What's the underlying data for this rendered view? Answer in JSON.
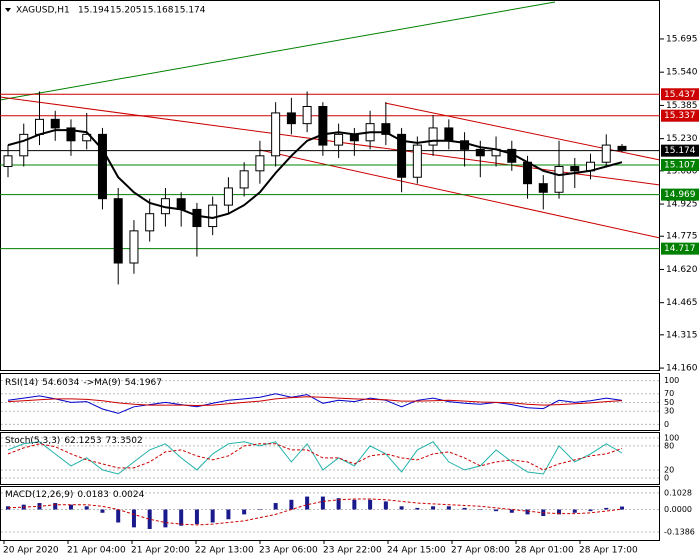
{
  "chart_data": {
    "type": "candlestick",
    "title": "XAGUSD,H1",
    "ylim": [
      14.151,
      15.872
    ],
    "yticks": [
      {
        "value": 14.16,
        "label": "14.160"
      },
      14.315,
      14.465,
      {
        "value": 14.62,
        "label": "14.620"
      },
      14.775,
      14.925,
      {
        "value": 15.08,
        "label": "15.080"
      },
      {
        "value": 15.23,
        "label": "15.230"
      },
      15.385,
      {
        "value": 15.54,
        "label": "15.540"
      },
      15.695
    ],
    "time_labels": [
      "20 Apr 2020",
      "21 Apr 04:00",
      "21 Apr 20:00",
      "22 Apr 13:00",
      "23 Apr 06:00",
      "23 Apr 22:00",
      "24 Apr 15:00",
      "27 Apr 08:00",
      "28 Apr 01:00",
      "28 Apr 17:00"
    ],
    "open": [
      15.1,
      15.15,
      15.25,
      15.32,
      15.28,
      15.22,
      15.25,
      14.95,
      14.65,
      14.8,
      14.88,
      14.95,
      14.9,
      14.82,
      14.92,
      15.0,
      15.08,
      15.15,
      15.35,
      15.3,
      15.38,
      15.2,
      15.25,
      15.22,
      15.3,
      15.25,
      15.05,
      15.2,
      15.28,
      15.22,
      15.18,
      15.15,
      15.18,
      15.12,
      15.02,
      14.98,
      15.1,
      15.08,
      15.12,
      15.194
    ],
    "high": [
      15.2,
      15.3,
      15.45,
      15.36,
      15.32,
      15.35,
      15.28,
      15.0,
      14.85,
      14.95,
      15.0,
      14.98,
      14.93,
      14.96,
      15.05,
      15.12,
      15.22,
      15.4,
      15.42,
      15.45,
      15.4,
      15.3,
      15.28,
      15.36,
      15.4,
      15.28,
      15.24,
      15.34,
      15.32,
      15.26,
      15.22,
      15.24,
      15.22,
      15.15,
      15.06,
      15.22,
      15.14,
      15.16,
      15.25,
      15.205
    ],
    "low": [
      15.05,
      15.1,
      15.2,
      15.22,
      15.15,
      15.18,
      14.9,
      14.55,
      14.6,
      14.75,
      14.82,
      14.82,
      14.68,
      14.78,
      14.88,
      14.96,
      15.02,
      15.1,
      15.25,
      15.26,
      15.15,
      15.14,
      15.15,
      15.18,
      15.2,
      14.98,
      15.02,
      15.15,
      15.18,
      15.1,
      15.05,
      15.1,
      15.08,
      14.95,
      14.9,
      14.95,
      15.0,
      15.04,
      15.1,
      15.168
    ],
    "close": [
      15.15,
      15.25,
      15.32,
      15.28,
      15.22,
      15.25,
      14.95,
      14.65,
      14.8,
      14.88,
      14.95,
      14.9,
      14.82,
      14.92,
      15.0,
      15.08,
      15.15,
      15.35,
      15.3,
      15.38,
      15.2,
      15.25,
      15.22,
      15.3,
      15.25,
      15.05,
      15.2,
      15.28,
      15.22,
      15.18,
      15.15,
      15.18,
      15.12,
      15.02,
      14.98,
      15.1,
      15.08,
      15.12,
      15.2,
      15.174
    ],
    "ma": {
      "color": "#000000",
      "values": [
        15.2,
        15.22,
        15.25,
        15.27,
        15.27,
        15.26,
        15.18,
        15.05,
        14.98,
        14.93,
        14.91,
        14.9,
        14.87,
        14.86,
        14.88,
        14.92,
        14.98,
        15.07,
        15.15,
        15.22,
        15.25,
        15.26,
        15.25,
        15.26,
        15.26,
        15.22,
        15.21,
        15.22,
        15.22,
        15.21,
        15.19,
        15.18,
        15.16,
        15.12,
        15.08,
        15.06,
        15.07,
        15.08,
        15.1,
        15.12
      ]
    },
    "levels": [
      {
        "value": 15.437,
        "color": "#cc0000"
      },
      {
        "value": 15.337,
        "color": "#cc0000"
      },
      {
        "value": 15.174,
        "color": "#000000"
      },
      {
        "value": 15.107,
        "color": "#008000"
      },
      {
        "value": 14.969,
        "color": "#008000"
      },
      {
        "value": 14.717,
        "color": "#008000"
      }
    ],
    "rsi": {
      "label": "RSI(14)",
      "ma_label": "->MA(9)",
      "ylim": [
        -13,
        115
      ],
      "yticks": [
        0,
        30,
        50,
        70,
        100
      ],
      "series": [
        {
          "color": "#0000cc",
          "values": [
            55,
            60,
            65,
            58,
            50,
            52,
            35,
            25,
            40,
            45,
            50,
            45,
            40,
            48,
            55,
            58,
            62,
            70,
            62,
            68,
            48,
            55,
            52,
            60,
            55,
            40,
            55,
            60,
            52,
            48,
            46,
            50,
            45,
            38,
            36,
            55,
            50,
            54,
            60,
            54.6034
          ]
        },
        {
          "color": "#cc0000",
          "values": [
            52,
            54,
            56,
            58,
            58,
            57,
            54,
            49,
            46,
            44,
            44,
            44,
            43,
            44,
            47,
            50,
            53,
            58,
            61,
            63,
            62,
            60,
            58,
            57,
            56,
            53,
            53,
            54,
            55,
            53,
            51,
            50,
            49,
            46,
            44,
            45,
            47,
            49,
            52,
            54.1967
          ]
        }
      ]
    },
    "stoch": {
      "label": "Stoch(5,3,3)",
      "ylim": [
        -15,
        112
      ],
      "yticks": [
        0,
        20,
        80,
        100
      ],
      "series": [
        {
          "color": "#20b2aa",
          "values": [
            70,
            85,
            90,
            60,
            30,
            50,
            20,
            10,
            40,
            70,
            85,
            50,
            20,
            60,
            85,
            90,
            80,
            90,
            40,
            85,
            20,
            50,
            30,
            80,
            60,
            15,
            70,
            90,
            40,
            20,
            30,
            70,
            40,
            15,
            10,
            80,
            40,
            60,
            85,
            62.1253
          ]
        },
        {
          "color": "#cc0000",
          "values": [
            60,
            75,
            85,
            78,
            60,
            45,
            35,
            25,
            25,
            40,
            65,
            70,
            55,
            45,
            55,
            80,
            85,
            85,
            70,
            70,
            50,
            50,
            35,
            55,
            60,
            50,
            45,
            60,
            65,
            50,
            30,
            40,
            45,
            40,
            20,
            35,
            45,
            55,
            60,
            73.3502
          ]
        }
      ]
    },
    "macd": {
      "label": "MACD(12,26,9)",
      "ylim": [
        -0.188,
        0.139
      ],
      "yticks": [
        -0.1386,
        {
          "value": 0,
          "label": "0.0000"
        },
        0.1028
      ],
      "histogram": {
        "color": "#1a1a8c",
        "values": [
          0.02,
          0.03,
          0.04,
          0.04,
          0.03,
          0.02,
          -0.02,
          -0.08,
          -0.11,
          -0.12,
          -0.11,
          -0.1,
          -0.09,
          -0.08,
          -0.06,
          -0.03,
          0.0,
          0.04,
          0.06,
          0.08,
          0.08,
          0.07,
          0.06,
          0.06,
          0.05,
          0.02,
          0.01,
          0.02,
          0.02,
          0.01,
          0.0,
          -0.01,
          -0.02,
          -0.03,
          -0.04,
          -0.03,
          -0.02,
          -0.01,
          0.01,
          0.0183
        ]
      },
      "signal": {
        "color": "#cc0000",
        "values": [
          0.01,
          0.015,
          0.02,
          0.03,
          0.03,
          0.03,
          0.02,
          0.0,
          -0.03,
          -0.06,
          -0.08,
          -0.09,
          -0.095,
          -0.09,
          -0.08,
          -0.07,
          -0.05,
          -0.03,
          0.0,
          0.03,
          0.05,
          0.06,
          0.065,
          0.065,
          0.06,
          0.05,
          0.04,
          0.035,
          0.03,
          0.025,
          0.02,
          0.01,
          0.0,
          -0.01,
          -0.02,
          -0.025,
          -0.025,
          -0.02,
          -0.01,
          0.0024
        ]
      }
    }
  }
}
